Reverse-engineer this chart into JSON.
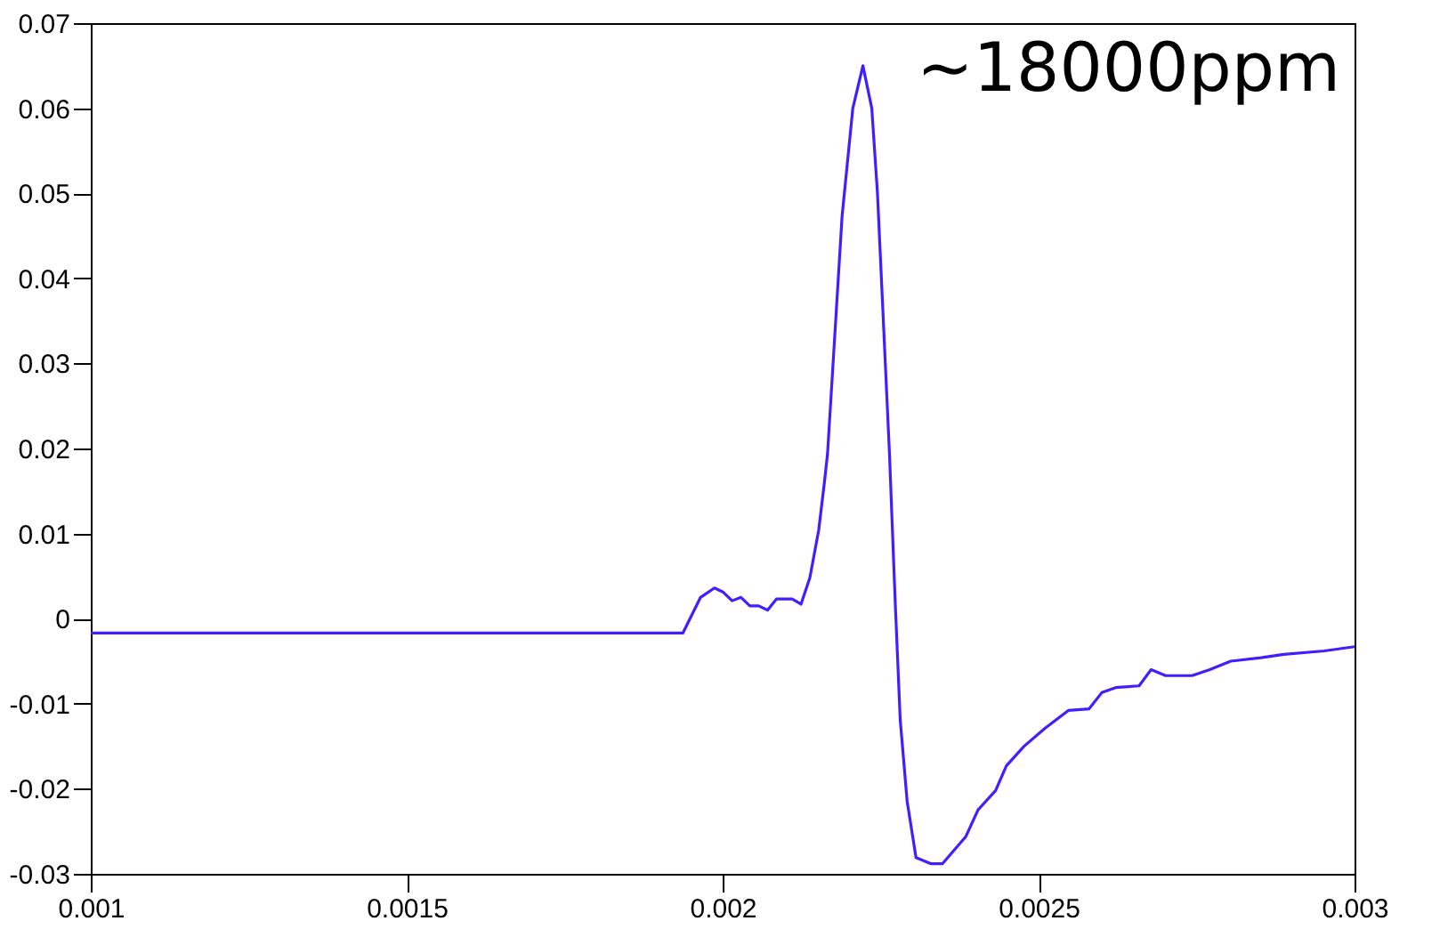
{
  "chart_data": {
    "type": "line",
    "x": [
      0.001,
      0.001923,
      0.001937,
      0.001965,
      0.001987,
      0.002001,
      0.002015,
      0.002029,
      0.002043,
      0.002057,
      0.002071,
      0.002085,
      0.00211,
      0.002124,
      0.002138,
      0.002152,
      0.002161,
      0.002166,
      0.002189,
      0.002206,
      0.002222,
      0.002236,
      0.002245,
      0.002264,
      0.002273,
      0.002281,
      0.002292,
      0.002306,
      0.002329,
      0.002348,
      0.002385,
      0.002404,
      0.002432,
      0.002449,
      0.002477,
      0.00251,
      0.002547,
      0.00258,
      0.0026,
      0.002622,
      0.002659,
      0.002678,
      0.002701,
      0.002743,
      0.002771,
      0.002804,
      0.002852,
      0.002888,
      0.002952,
      0.003
    ],
    "series": [
      {
        "color": "#3f1fff",
        "values": [
          -0.0017,
          -0.0017,
          -0.0017,
          0.0025,
          0.0036,
          0.0031,
          0.0021,
          0.0025,
          0.0015,
          0.0015,
          0.001,
          0.0023,
          0.0023,
          0.0017,
          0.0048,
          0.0104,
          0.016,
          0.0194,
          0.0473,
          0.06,
          0.065,
          0.06,
          0.05,
          0.0194,
          0.0021,
          -0.0119,
          -0.0215,
          -0.0281,
          -0.0288,
          -0.0288,
          -0.0256,
          -0.0225,
          -0.0202,
          -0.0173,
          -0.015,
          -0.0129,
          -0.0108,
          -0.0106,
          -0.0087,
          -0.0081,
          -0.0079,
          -0.006,
          -0.0067,
          -0.0067,
          -0.006,
          -0.005,
          -0.0046,
          -0.0042,
          -0.0038,
          -0.0033
        ]
      }
    ],
    "xlim": [
      0.001,
      0.003
    ],
    "xticks": [
      0.001,
      0.0015,
      0.002,
      0.0025,
      0.003
    ],
    "ylim": [
      -0.03,
      0.07
    ],
    "yticks": [
      -0.03,
      -0.02,
      -0.01,
      0,
      0.01,
      0.02,
      0.03,
      0.04,
      0.05,
      0.06,
      0.07
    ],
    "annotations": [
      "~18000ppm"
    ],
    "grid": false
  }
}
